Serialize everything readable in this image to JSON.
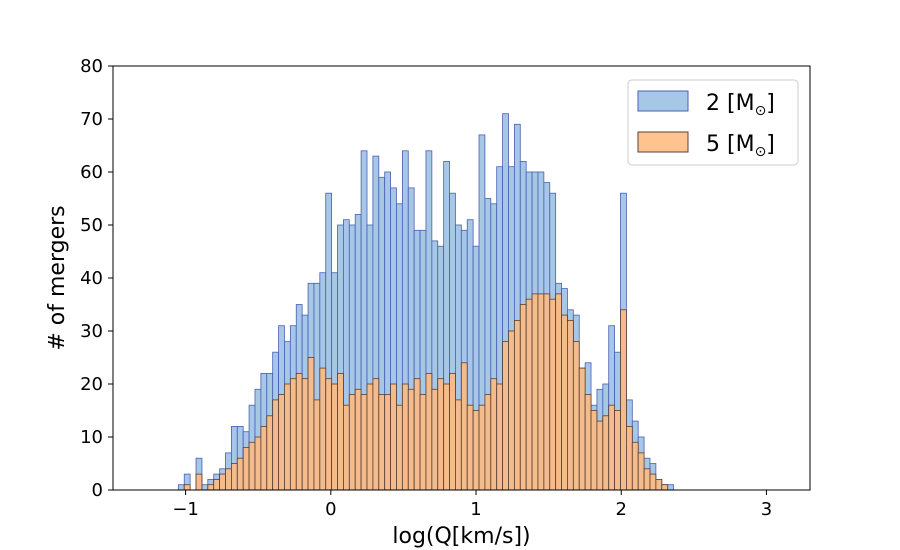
{
  "chart_data": {
    "type": "bar",
    "subtype": "overlaid-histogram",
    "title": "",
    "xlabel": "log(Q[km/s])",
    "ylabel": "# of mergers",
    "xlim": [
      -1.5,
      3.3
    ],
    "ylim": [
      0,
      80
    ],
    "xticks": [
      -1,
      0,
      1,
      2,
      3
    ],
    "yticks": [
      0,
      10,
      20,
      30,
      40,
      50,
      60,
      70,
      80
    ],
    "grid": false,
    "legend_position": "top-right",
    "bin_start": -1.05,
    "bin_width": 0.0406,
    "series": [
      {
        "name": "2 [M",
        "name_sub": "⊙",
        "name_suffix": "]",
        "color": "#a2c4e6",
        "edge_color": "#4a5fb3",
        "values": [
          1,
          3,
          0,
          6,
          1,
          2,
          3,
          4,
          7,
          12,
          12,
          11,
          16,
          19,
          22,
          22,
          26,
          31,
          28,
          31,
          35,
          33,
          39,
          39,
          41,
          56,
          41,
          50,
          51,
          50,
          52,
          64,
          50,
          63,
          59,
          60,
          57,
          54,
          64,
          57,
          49,
          49,
          64,
          47,
          46,
          62,
          56,
          50,
          49,
          51,
          46,
          67,
          55,
          54,
          61,
          71,
          61,
          69,
          62,
          60,
          60,
          60,
          58,
          56,
          39,
          38,
          34,
          33,
          23,
          24,
          16,
          19,
          20,
          31,
          26,
          56,
          17,
          13,
          10,
          6,
          5,
          2,
          1,
          1
        ]
      },
      {
        "name": "5 [M",
        "name_sub": "⊙",
        "name_suffix": "]",
        "color": "#ffbb80",
        "edge_color": "#5a4030",
        "values": [
          0,
          1,
          0,
          3,
          0,
          1,
          2,
          3,
          4,
          5,
          6,
          8,
          9,
          10,
          12,
          14,
          17,
          18,
          20,
          21,
          22,
          21,
          25,
          17,
          23,
          21,
          20,
          22,
          16,
          18,
          19,
          18,
          20,
          21,
          18,
          18,
          20,
          16,
          20,
          19,
          21,
          18,
          22,
          19,
          21,
          20,
          22,
          17,
          24,
          16,
          15,
          16,
          18,
          21,
          20,
          28,
          30,
          32,
          35,
          36,
          37,
          37,
          37,
          36,
          37,
          33,
          32,
          28,
          23,
          18,
          15,
          13,
          14,
          16,
          15,
          34,
          12,
          9,
          7,
          4,
          3,
          2,
          1,
          0
        ]
      }
    ]
  }
}
